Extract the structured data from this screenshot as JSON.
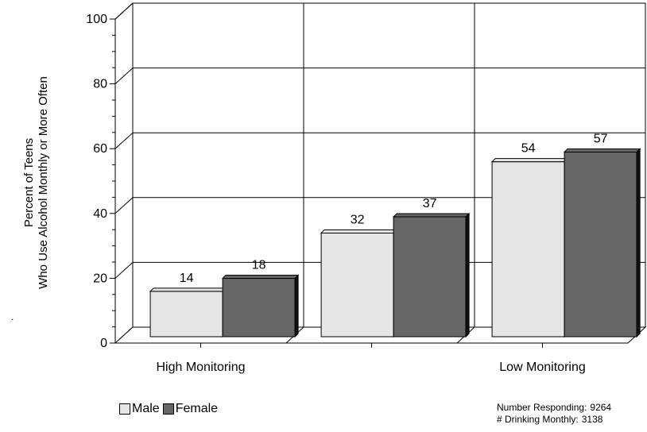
{
  "chart_data": {
    "type": "bar",
    "categories": [
      "High Monitoring",
      "",
      "Low Monitoring"
    ],
    "series": [
      {
        "name": "Male",
        "values": [
          14,
          32,
          54
        ],
        "color": "#e6e6e6"
      },
      {
        "name": "Female",
        "values": [
          18,
          37,
          57
        ],
        "color": "#666666"
      }
    ],
    "ylabel_lines": [
      "Percent of Teens",
      "Who Use Alcohol Monthly or More Often"
    ],
    "ylim": [
      0,
      100
    ],
    "yticks": [
      "0",
      "20",
      "40",
      "60",
      "80",
      "100"
    ],
    "grid": true,
    "legend_position": "bottom-left",
    "dot_mark": "."
  },
  "footer": {
    "responding_label": "Number Responding:",
    "responding_value": "9264",
    "drinking_label": "# Drinking Monthly:",
    "drinking_value": "3138"
  }
}
